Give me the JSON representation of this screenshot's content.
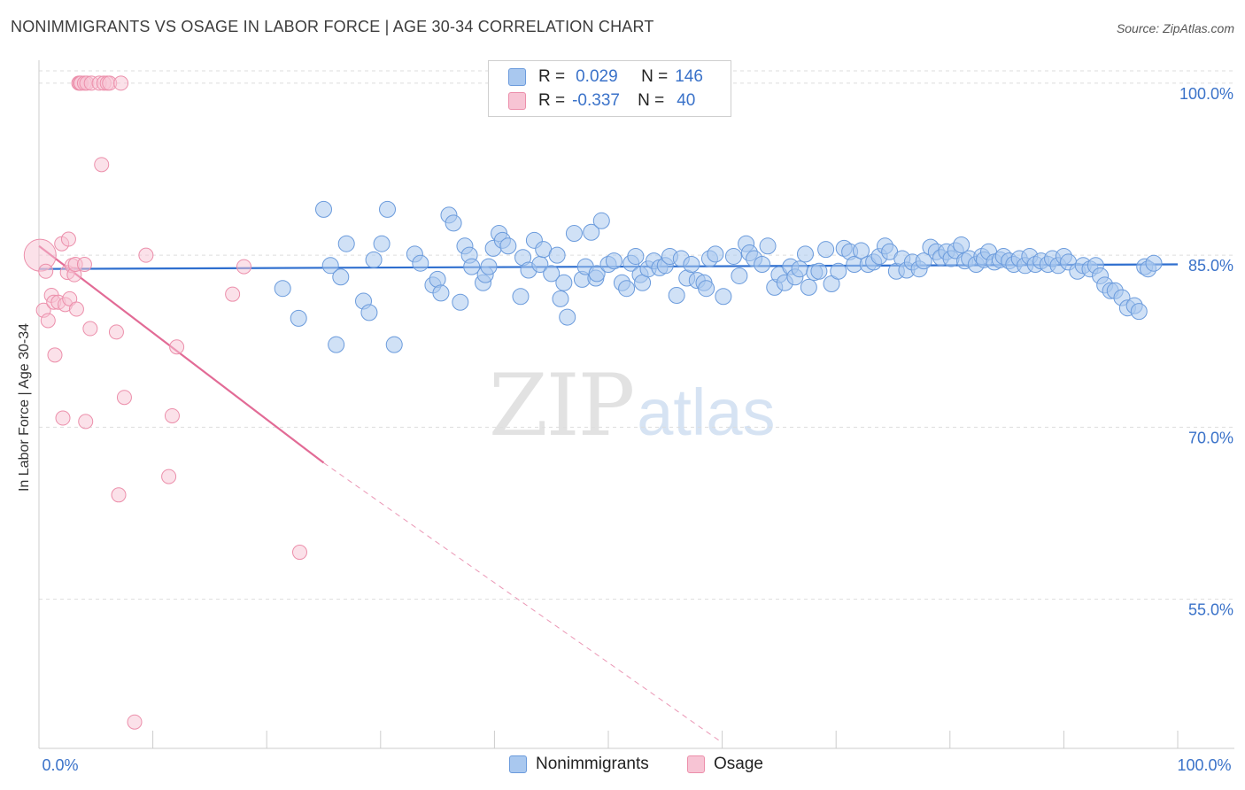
{
  "title": "NONIMMIGRANTS VS OSAGE IN LABOR FORCE | AGE 30-34 CORRELATION CHART",
  "source": "Source: ZipAtlas.com",
  "watermark": {
    "zip": "ZIP",
    "atlas": "atlas"
  },
  "legend": {
    "rows": [
      {
        "r_label": "R =",
        "r_value": "0.029",
        "n_label": "N =",
        "n_value": "146"
      },
      {
        "r_label": "R =",
        "r_value": "-0.337",
        "n_label": "N =",
        "n_value": "40"
      }
    ]
  },
  "bottom_legend": {
    "series1": "Nonimmigrants",
    "series2": "Osage"
  },
  "colors": {
    "blue_fill": "#a9c8ef",
    "blue_stroke": "#6b9bdc",
    "blue_line": "#2f6fcf",
    "pink_fill": "#f7c4d4",
    "pink_stroke": "#ec8fab",
    "pink_line": "#e26b96",
    "tick_label": "#3a72c9",
    "grid": "#dddddd"
  },
  "chart_data": {
    "type": "scatter",
    "title": "NONIMMIGRANTS VS OSAGE IN LABOR FORCE | AGE 30-34 CORRELATION CHART",
    "ylabel": "In Labor Force | Age 30-34",
    "xlabel": "",
    "xlim": [
      0,
      100
    ],
    "ylim": [
      42,
      102
    ],
    "x_tick_labels": [
      {
        "value": 0,
        "label": "0.0%"
      },
      {
        "value": 100,
        "label": "100.0%"
      }
    ],
    "y_tick_labels": [
      {
        "value": 55,
        "label": "55.0%"
      },
      {
        "value": 70,
        "label": "70.0%"
      },
      {
        "value": 85,
        "label": "85.0%"
      },
      {
        "value": 100,
        "label": "100.0%"
      }
    ],
    "grid": true,
    "legend_position": "top-center",
    "series": [
      {
        "name": "Nonimmigrants",
        "r": 0.029,
        "n": 146,
        "trend": {
          "x": [
            0,
            100
          ],
          "y": [
            83.8,
            84.2
          ],
          "style": "solid"
        },
        "points": [
          [
            21.4,
            82.1
          ],
          [
            22.8,
            79.5
          ],
          [
            25,
            89
          ],
          [
            25.6,
            84.1
          ],
          [
            26.1,
            77.2
          ],
          [
            26.5,
            83.1
          ],
          [
            27,
            86
          ],
          [
            28.5,
            81
          ],
          [
            29,
            80
          ],
          [
            29.4,
            84.6
          ],
          [
            30.1,
            86
          ],
          [
            30.6,
            89
          ],
          [
            31.2,
            77.2
          ],
          [
            33,
            85.1
          ],
          [
            33.5,
            84.3
          ],
          [
            34.6,
            82.4
          ],
          [
            35,
            82.9
          ],
          [
            35.3,
            81.7
          ],
          [
            36,
            88.5
          ],
          [
            36.4,
            87.8
          ],
          [
            37,
            80.9
          ],
          [
            37.4,
            85.8
          ],
          [
            37.8,
            85
          ],
          [
            38,
            84
          ],
          [
            39,
            82.6
          ],
          [
            39.2,
            83.3
          ],
          [
            39.5,
            84
          ],
          [
            39.9,
            85.6
          ],
          [
            40.4,
            86.9
          ],
          [
            40.7,
            86.3
          ],
          [
            41.2,
            85.8
          ],
          [
            42.3,
            81.4
          ],
          [
            42.5,
            84.8
          ],
          [
            43,
            83.7
          ],
          [
            43.5,
            86.3
          ],
          [
            44,
            84.2
          ],
          [
            44.3,
            85.5
          ],
          [
            45,
            83.4
          ],
          [
            45.5,
            85
          ],
          [
            45.8,
            81.2
          ],
          [
            46.1,
            82.6
          ],
          [
            46.4,
            79.6
          ],
          [
            47,
            86.9
          ],
          [
            47.7,
            82.9
          ],
          [
            48,
            84
          ],
          [
            48.5,
            87
          ],
          [
            48.9,
            83
          ],
          [
            49,
            83.4
          ],
          [
            49.4,
            88
          ],
          [
            50,
            84.2
          ],
          [
            50.5,
            84.5
          ],
          [
            51.2,
            82.6
          ],
          [
            51.6,
            82.1
          ],
          [
            52,
            84.3
          ],
          [
            52.4,
            84.9
          ],
          [
            52.8,
            83.3
          ],
          [
            53,
            82.6
          ],
          [
            53.5,
            83.8
          ],
          [
            54,
            84.5
          ],
          [
            54.5,
            83.9
          ],
          [
            55,
            84.1
          ],
          [
            55.4,
            84.9
          ],
          [
            56,
            81.5
          ],
          [
            56.4,
            84.7
          ],
          [
            56.9,
            83
          ],
          [
            57.3,
            84.2
          ],
          [
            57.8,
            82.8
          ],
          [
            58.4,
            82.6
          ],
          [
            58.6,
            82.1
          ],
          [
            58.9,
            84.7
          ],
          [
            59.4,
            85.1
          ],
          [
            60.1,
            81.4
          ],
          [
            61,
            84.9
          ],
          [
            61.5,
            83.2
          ],
          [
            62.1,
            86
          ],
          [
            62.4,
            85.2
          ],
          [
            62.8,
            84.7
          ],
          [
            63.5,
            84.2
          ],
          [
            64,
            85.8
          ],
          [
            64.6,
            82.2
          ],
          [
            65,
            83.3
          ],
          [
            65.5,
            82.6
          ],
          [
            66,
            84
          ],
          [
            66.4,
            83.1
          ],
          [
            66.8,
            83.8
          ],
          [
            67.3,
            85.1
          ],
          [
            67.6,
            82.2
          ],
          [
            68.1,
            83.5
          ],
          [
            68.5,
            83.6
          ],
          [
            69.1,
            85.5
          ],
          [
            69.6,
            82.5
          ],
          [
            70.2,
            83.6
          ],
          [
            70.7,
            85.6
          ],
          [
            71.2,
            85.3
          ],
          [
            71.6,
            84.2
          ],
          [
            72.2,
            85.4
          ],
          [
            72.8,
            84.2
          ],
          [
            73.3,
            84.4
          ],
          [
            73.8,
            84.9
          ],
          [
            74.3,
            85.8
          ],
          [
            74.7,
            85.3
          ],
          [
            75.3,
            83.6
          ],
          [
            75.8,
            84.7
          ],
          [
            76.2,
            83.7
          ],
          [
            76.7,
            84.4
          ],
          [
            77.3,
            83.8
          ],
          [
            77.7,
            84.5
          ],
          [
            78.3,
            85.7
          ],
          [
            78.8,
            85.3
          ],
          [
            79.2,
            84.8
          ],
          [
            79.7,
            85.3
          ],
          [
            80.1,
            84.7
          ],
          [
            80.5,
            85.4
          ],
          [
            81,
            85.9
          ],
          [
            81.3,
            84.5
          ],
          [
            81.7,
            84.7
          ],
          [
            82.3,
            84.2
          ],
          [
            82.8,
            84.9
          ],
          [
            83,
            84.6
          ],
          [
            83.4,
            85.3
          ],
          [
            83.9,
            84.4
          ],
          [
            84.4,
            84.6
          ],
          [
            84.7,
            84.9
          ],
          [
            85.2,
            84.5
          ],
          [
            85.6,
            84.2
          ],
          [
            86.1,
            84.7
          ],
          [
            86.6,
            84.1
          ],
          [
            87,
            84.9
          ],
          [
            87.5,
            84.2
          ],
          [
            88,
            84.5
          ],
          [
            88.6,
            84.2
          ],
          [
            89,
            84.7
          ],
          [
            89.5,
            84.1
          ],
          [
            90,
            84.9
          ],
          [
            90.4,
            84.4
          ],
          [
            91.2,
            83.6
          ],
          [
            91.7,
            84.1
          ],
          [
            92.3,
            83.8
          ],
          [
            92.8,
            84.1
          ],
          [
            93.2,
            83.2
          ],
          [
            93.6,
            82.4
          ],
          [
            94.1,
            81.9
          ],
          [
            94.5,
            81.9
          ],
          [
            95.1,
            81.3
          ],
          [
            95.6,
            80.4
          ],
          [
            96.2,
            80.6
          ],
          [
            96.6,
            80.1
          ],
          [
            97.1,
            84
          ],
          [
            97.4,
            83.8
          ],
          [
            97.9,
            84.3
          ]
        ]
      },
      {
        "name": "Osage",
        "r": -0.337,
        "n": 40,
        "trend": {
          "x": [
            0,
            25
          ],
          "y": [
            85.8,
            66.9
          ],
          "style": "solid",
          "extension": {
            "x": [
              25,
              60
            ],
            "y": [
              66.9,
              42.5
            ],
            "style": "dashed"
          }
        },
        "points": [
          [
            0.1,
            85
          ],
          [
            0.4,
            80.2
          ],
          [
            0.6,
            83.6
          ],
          [
            0.8,
            79.3
          ],
          [
            1.1,
            81.5
          ],
          [
            1.3,
            80.9
          ],
          [
            1.4,
            76.3
          ],
          [
            1.7,
            80.9
          ],
          [
            2,
            86
          ],
          [
            2.1,
            70.8
          ],
          [
            2.3,
            80.7
          ],
          [
            2.5,
            83.5
          ],
          [
            2.6,
            86.4
          ],
          [
            2.7,
            81.2
          ],
          [
            2.9,
            84.1
          ],
          [
            3.1,
            83.3
          ],
          [
            3.2,
            84.2
          ],
          [
            3.3,
            80.3
          ],
          [
            3.5,
            100
          ],
          [
            3.6,
            100
          ],
          [
            3.7,
            100
          ],
          [
            4,
            84.2
          ],
          [
            4,
            100
          ],
          [
            4.2,
            100
          ],
          [
            4.1,
            70.5
          ],
          [
            4.5,
            78.6
          ],
          [
            4.6,
            100
          ],
          [
            5.3,
            100
          ],
          [
            5.5,
            92.9
          ],
          [
            5.7,
            100
          ],
          [
            6,
            100
          ],
          [
            6.2,
            100
          ],
          [
            6.8,
            78.3
          ],
          [
            7,
            64.1
          ],
          [
            7.2,
            100
          ],
          [
            7.5,
            72.6
          ],
          [
            8.4,
            44.3
          ],
          [
            9.4,
            85
          ],
          [
            11.7,
            71
          ],
          [
            11.4,
            65.7
          ],
          [
            12.1,
            77
          ],
          [
            17,
            81.6
          ],
          [
            18,
            84
          ],
          [
            22.9,
            59.1
          ]
        ]
      }
    ]
  }
}
